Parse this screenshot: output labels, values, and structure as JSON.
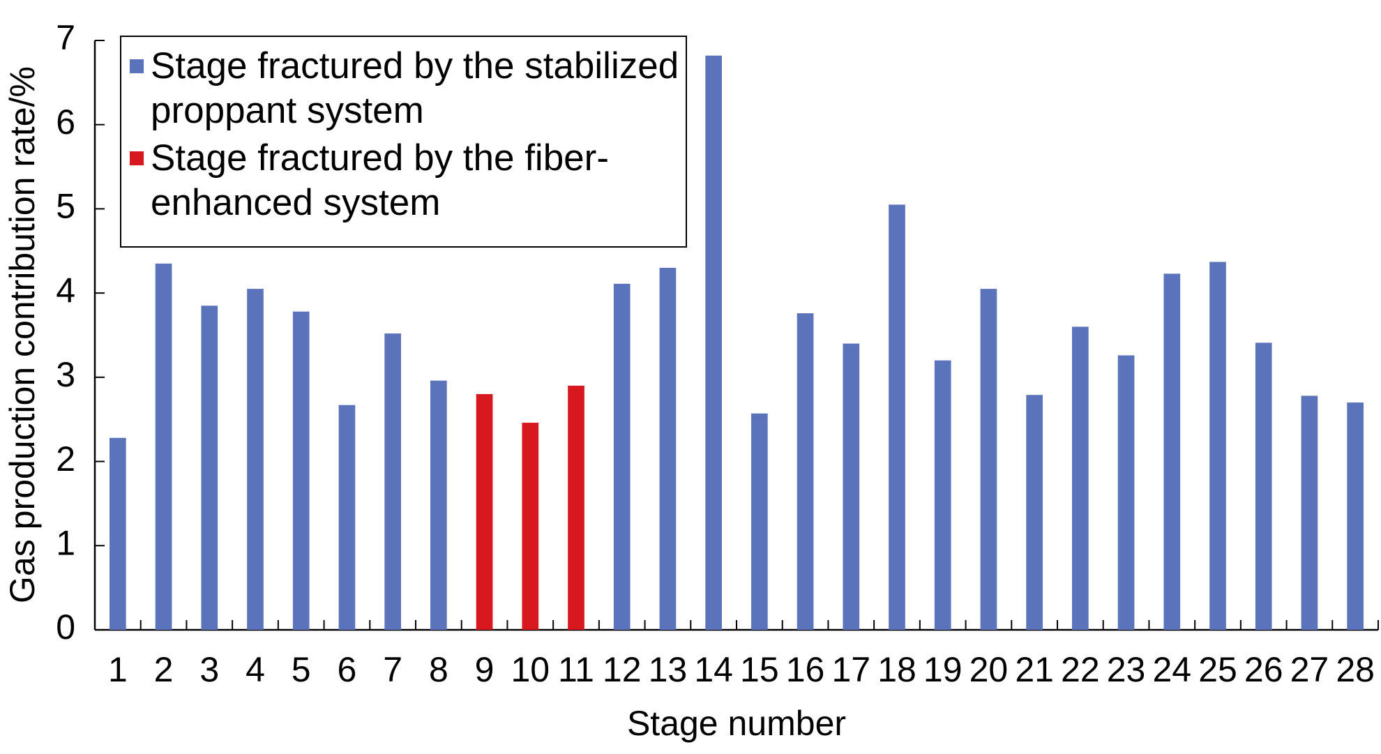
{
  "chart_data": {
    "type": "bar",
    "x_label": "Stage number",
    "y_label": "Gas production contribution rate/%",
    "categories": [
      "1",
      "2",
      "3",
      "4",
      "5",
      "6",
      "7",
      "8",
      "9",
      "10",
      "11",
      "12",
      "13",
      "14",
      "15",
      "16",
      "17",
      "18",
      "19",
      "20",
      "21",
      "22",
      "23",
      "24",
      "25",
      "26",
      "27",
      "28"
    ],
    "series": [
      {
        "name": "Stage fractured by the stabilized proppant system",
        "color": "#5b73bb",
        "values": [
          2.28,
          4.35,
          3.85,
          4.05,
          3.78,
          2.67,
          3.52,
          2.96,
          null,
          null,
          null,
          4.11,
          4.3,
          6.82,
          2.57,
          3.76,
          3.4,
          5.05,
          3.2,
          4.05,
          2.79,
          3.6,
          3.26,
          4.23,
          4.37,
          3.41,
          2.78,
          2.7
        ]
      },
      {
        "name": "Stage fractured by the fiber-enhanced system",
        "color": "#d7191f",
        "values": [
          null,
          null,
          null,
          null,
          null,
          null,
          null,
          null,
          2.8,
          2.46,
          2.9,
          null,
          null,
          null,
          null,
          null,
          null,
          null,
          null,
          null,
          null,
          null,
          null,
          null,
          null,
          null,
          null,
          null
        ]
      }
    ],
    "ylim": [
      0,
      7
    ],
    "yticks": [
      0,
      1,
      2,
      3,
      4,
      5,
      6,
      7
    ],
    "legend": "top-left",
    "grid": false
  }
}
